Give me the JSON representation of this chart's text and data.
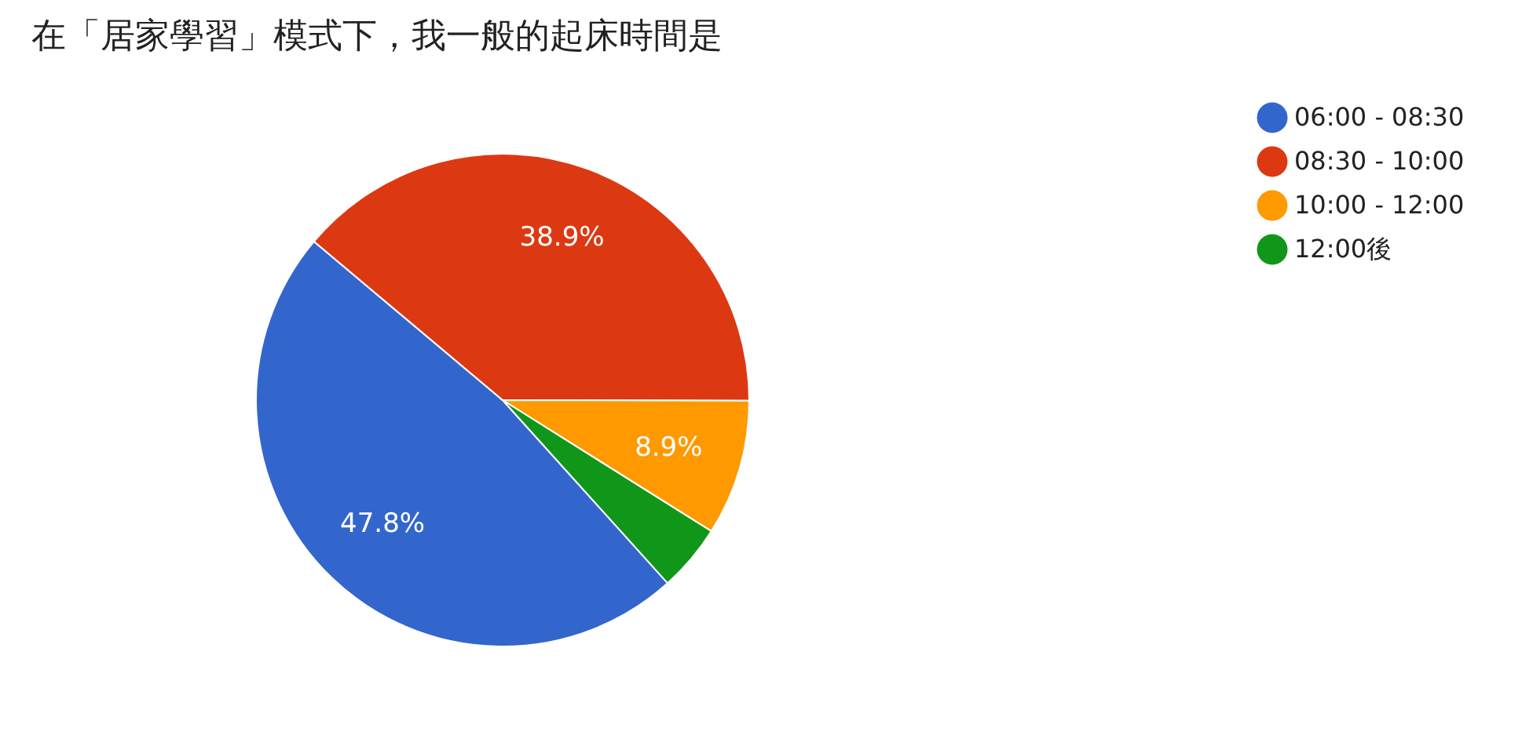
{
  "chart_data": {
    "type": "pie",
    "title": "在「居家學習」模式下，我一般的起床時間是",
    "categories": [
      "06:00 - 08:30",
      "08:30 - 10:00",
      "10:00 - 12:00",
      "12:00後"
    ],
    "values": [
      47.8,
      38.9,
      8.9,
      4.4
    ],
    "colors": [
      "#3366cc",
      "#dc3912",
      "#ff9900",
      "#109618"
    ],
    "value_labels": [
      "47.8%",
      "38.9%",
      "8.9%",
      null
    ],
    "legend": "right"
  }
}
